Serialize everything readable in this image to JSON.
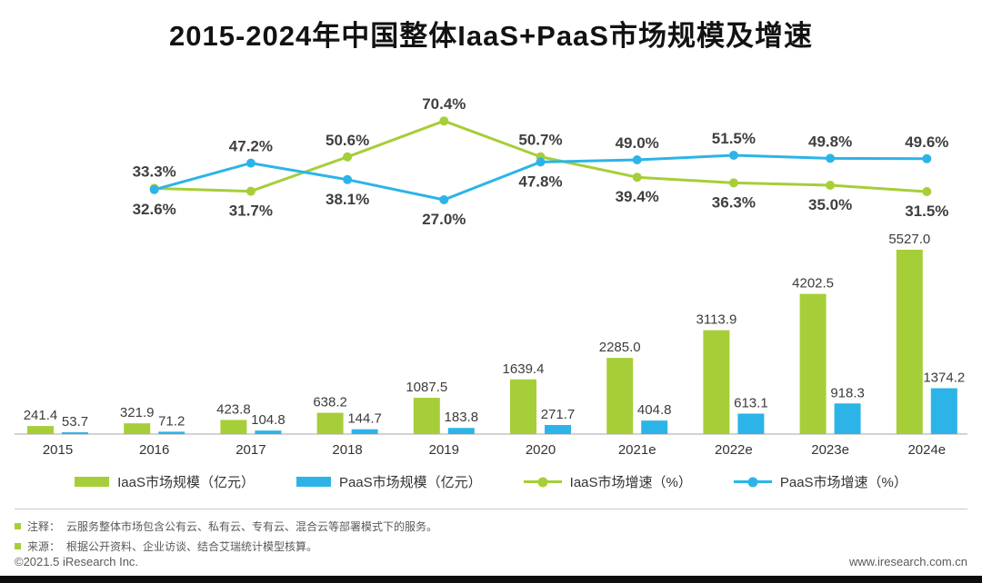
{
  "title": "2015-2024年中国整体IaaS+PaaS市场规模及增速",
  "chart_data": {
    "type": "bar",
    "subtype": "grouped-bars-with-growth-lines",
    "title": "2015-2024年中国整体IaaS+PaaS市场规模及增速",
    "categories": [
      "2015",
      "2016",
      "2017",
      "2018",
      "2019",
      "2020",
      "2021e",
      "2022e",
      "2023e",
      "2024e"
    ],
    "bar_series": [
      {
        "name": "IaaS市场规模（亿元）",
        "color": "#a6ce38",
        "values": [
          241.4,
          321.9,
          423.8,
          638.2,
          1087.5,
          1639.4,
          2285.0,
          3113.9,
          4202.5,
          5527.0
        ]
      },
      {
        "name": "PaaS市场规模（亿元）",
        "color": "#2cb4e8",
        "values": [
          53.7,
          71.2,
          104.8,
          144.7,
          183.8,
          271.7,
          404.8,
          613.1,
          918.3,
          1374.2
        ]
      }
    ],
    "line_series": [
      {
        "name": "IaaS市场增速（%）",
        "color": "#a6ce38",
        "x_categories": [
          "2016",
          "2017",
          "2018",
          "2019",
          "2020",
          "2021e",
          "2022e",
          "2023e",
          "2024e"
        ],
        "values": [
          33.3,
          31.7,
          50.6,
          70.4,
          50.7,
          39.4,
          36.3,
          35.0,
          31.5
        ]
      },
      {
        "name": "PaaS市场增速（%）",
        "color": "#2cb4e8",
        "x_categories": [
          "2016",
          "2017",
          "2018",
          "2019",
          "2020",
          "2021e",
          "2022e",
          "2023e",
          "2024e"
        ],
        "values": [
          32.6,
          47.2,
          38.1,
          27.0,
          47.8,
          49.0,
          51.5,
          49.8,
          49.6
        ]
      }
    ],
    "bar_ylim": [
      0,
      5527
    ],
    "grid": false,
    "legend_position": "bottom",
    "value_labels": "shown-one-decimal"
  },
  "notes": [
    {
      "label": "注释：",
      "text": "云服务整体市场包含公有云、私有云、专有云、混合云等部署模式下的服务。"
    },
    {
      "label": "来源：",
      "text": "根据公开资料、企业访谈、结合艾瑞统计模型核算。"
    }
  ],
  "footer": {
    "copyright": "©2021.5 iResearch Inc.",
    "website": "www.iresearch.com.cn"
  },
  "colors": {
    "iaas_green": "#a6ce38",
    "paas_blue": "#2cb4e8",
    "label_dark": "#3f3f3f",
    "note_gray": "#595959",
    "axis_gray": "#a6a6a6"
  }
}
